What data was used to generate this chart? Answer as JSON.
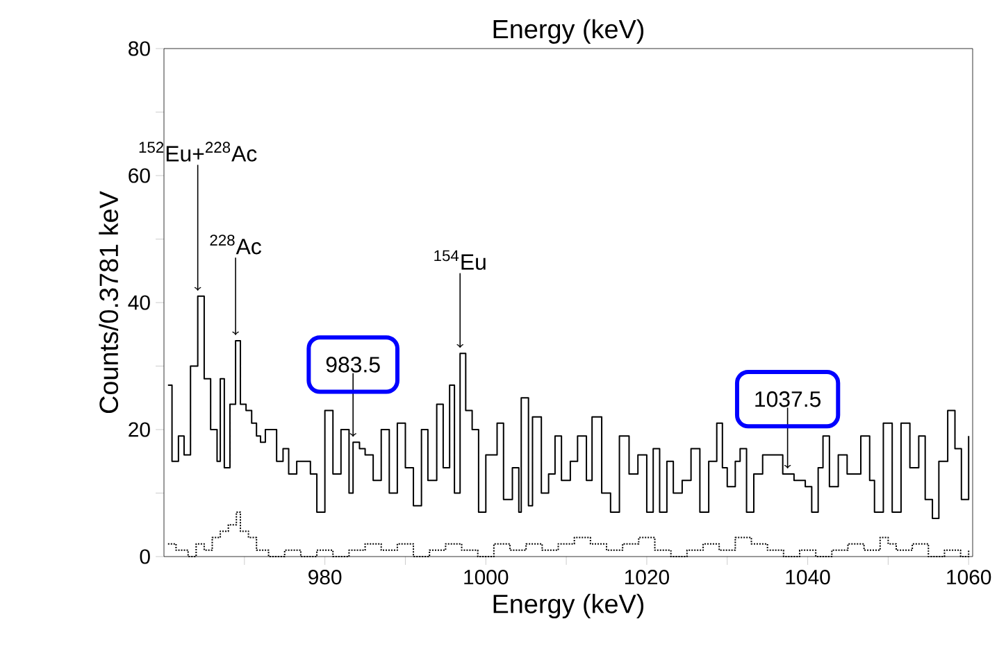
{
  "chart_data": {
    "type": "step",
    "xlabel": "Energy (keV)",
    "x2label": "Energy (keV)",
    "ylabel": "Counts/0.3781 keV",
    "xlim": [
      960,
      1060.5
    ],
    "ylim": [
      0,
      80
    ],
    "xticks": [
      {
        "value": 970,
        "label": null
      },
      980,
      {
        "value": 990,
        "label": null
      },
      1000,
      {
        "value": 1010,
        "label": null
      },
      1020,
      {
        "value": 1030,
        "label": null
      },
      1040,
      {
        "value": 1050,
        "label": null
      },
      1060
    ],
    "yticks": [
      0,
      {
        "value": 10,
        "label": null
      },
      20,
      {
        "value": 30,
        "label": null
      },
      40,
      {
        "value": 50,
        "label": null
      },
      60,
      {
        "value": 70,
        "label": null
      },
      80
    ],
    "grid": false,
    "series": [
      {
        "color": "#000000",
        "line_style": "solid",
        "x": [
          960.5,
          961,
          961.8,
          962.5,
          963.3,
          964.2,
          965,
          965.8,
          966.6,
          967,
          967.5,
          968.2,
          968.9,
          969.5,
          970.2,
          970.9,
          971.5,
          972,
          972.6,
          973,
          974,
          974.8,
          975.5,
          976.5,
          977.5,
          978.2,
          979,
          980,
          981,
          982,
          983,
          983.5,
          984.3,
          985,
          986,
          987,
          988,
          989,
          990,
          991,
          992,
          992.8,
          993.9,
          994.7,
          995.5,
          996.1,
          996.8,
          997.5,
          998.3,
          999.1,
          1000,
          1000.8,
          1001.4,
          1002.2,
          1003.3,
          1004.1,
          1004.4,
          1005.3,
          1005.8,
          1006.9,
          1007.8,
          1008.6,
          1009.4,
          1010.5,
          1011.4,
          1012.5,
          1013.2,
          1014.4,
          1015.5,
          1016.6,
          1017.8,
          1018.9,
          1020,
          1020.8,
          1021.6,
          1022.5,
          1023.3,
          1024.4,
          1025.5,
          1026.6,
          1027.7,
          1028.7,
          1029.4,
          1030,
          1031,
          1031.6,
          1032.4,
          1033.3,
          1034.4,
          1035.5,
          1036.9,
          1038.3,
          1039.7,
          1040.5,
          1041.3,
          1041.9,
          1042.7,
          1043.8,
          1044.9,
          1046.6,
          1047.7,
          1048.3,
          1049.4,
          1050.5,
          1051.6,
          1052.7,
          1053.8,
          1054.6,
          1055.5,
          1056.3,
          1057.4,
          1058.3,
          1059.1,
          1060
        ],
        "values": [
          27,
          15,
          19,
          16,
          30,
          41,
          28,
          20,
          15,
          28,
          14,
          24,
          34,
          24,
          23,
          21,
          19,
          18,
          20,
          20,
          15,
          17,
          13,
          15,
          15,
          13,
          7,
          23,
          13,
          20,
          10,
          18,
          17,
          16,
          12,
          20,
          10,
          21,
          14,
          8,
          20,
          12,
          24,
          14,
          27,
          10,
          32,
          23,
          20,
          7,
          16,
          16,
          21,
          9,
          14,
          7,
          25,
          8,
          22,
          10,
          13,
          19,
          12,
          15,
          19,
          12,
          22,
          10,
          7,
          19,
          13,
          16,
          7,
          17,
          7,
          15,
          10,
          12,
          17,
          7,
          15,
          21,
          14,
          11,
          15,
          17,
          7,
          13,
          16,
          16,
          13,
          12,
          11,
          7,
          14,
          19,
          11,
          16,
          13,
          19,
          12,
          7,
          21,
          7,
          21,
          14,
          19,
          9,
          6,
          15,
          23,
          17,
          9,
          19
        ]
      },
      {
        "color": "#000000",
        "line_style": "dotted",
        "x": [
          960.5,
          961.5,
          963,
          964,
          965,
          966,
          967,
          968,
          969,
          969.5,
          970.5,
          971.5,
          973,
          975,
          977,
          979,
          981,
          983,
          985,
          987,
          989,
          991,
          993,
          995,
          997,
          999,
          1001,
          1003,
          1005,
          1007,
          1009,
          1011,
          1013,
          1015,
          1017,
          1019,
          1021,
          1023,
          1025,
          1027,
          1029,
          1031,
          1033,
          1035,
          1037,
          1039,
          1041,
          1043,
          1045,
          1047,
          1049,
          1050,
          1051,
          1053,
          1055,
          1057,
          1059,
          1060
        ],
        "values": [
          2,
          1,
          0,
          2,
          1,
          3,
          4,
          5,
          7,
          4,
          3,
          1,
          0,
          1,
          0,
          1,
          0,
          1,
          2,
          1,
          2,
          0,
          1,
          2,
          1,
          0,
          2,
          1,
          2,
          1,
          2,
          3,
          2,
          1,
          2,
          3,
          1,
          0,
          1,
          2,
          1,
          3,
          2,
          1,
          0,
          1,
          0,
          1,
          2,
          1,
          3,
          2,
          1,
          2,
          0,
          1,
          0,
          1
        ]
      }
    ],
    "annotations": [
      {
        "text": "$^{152}$Eu+$^{228}$Ac",
        "x": 964.2,
        "y": 41
      },
      {
        "text": "$^{228}$Ac",
        "x": 968.9,
        "y": 34
      },
      {
        "text": "$^{154}$Eu",
        "x": 996.8,
        "y": 32
      },
      {
        "text": "983.5",
        "x": 983.5,
        "y": 18
      },
      {
        "text": "1037.5",
        "x": 1037.5,
        "y": 13
      }
    ]
  }
}
